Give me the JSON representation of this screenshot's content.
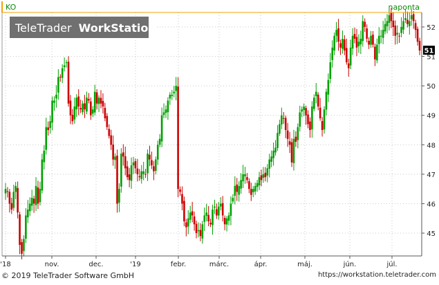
{
  "symbol": "KO",
  "period": "naponta",
  "watermark": {
    "prefix": "TeleTrader",
    "suffix": "WorkStation"
  },
  "footer": {
    "copyright": "© 2019 TeleTrader Software GmbH",
    "url": "https://workstation.teletrader.com"
  },
  "colors": {
    "up": "#00a000",
    "down": "#cc0000",
    "accent": "#f5a000",
    "grid": "#c8c8c8"
  },
  "last_price_label": "51",
  "chart_data": {
    "type": "candlestick",
    "title": "KO",
    "x_tick_labels": [
      "'18",
      "nov.",
      "dec.",
      "'19",
      "febr.",
      "márc.",
      "ápr.",
      "máj.",
      "jún.",
      "júl."
    ],
    "y_ticks": [
      45,
      46,
      47,
      48,
      49,
      50,
      51,
      52
    ],
    "ylim": [
      44.6,
      52.45
    ],
    "last_price": 51.2,
    "grid": true,
    "closes": [
      46.5,
      46.4,
      46.0,
      45.8,
      46.4,
      46.6,
      45.7,
      44.6,
      44.3,
      44.8,
      45.6,
      45.8,
      46.0,
      46.2,
      46.0,
      46.6,
      46.0,
      46.5,
      47.5,
      47.8,
      48.6,
      48.5,
      48.8,
      49.5,
      49.5,
      49.7,
      50.3,
      50.3,
      50.6,
      50.7,
      50.8,
      49.4,
      49.0,
      48.8,
      49.3,
      49.6,
      49.3,
      49.2,
      49.4,
      49.2,
      49.6,
      49.5,
      49.0,
      49.2,
      49.8,
      49.4,
      49.6,
      49.4,
      49.3,
      48.9,
      48.6,
      48.3,
      48.0,
      47.5,
      47.6,
      46.0,
      46.5,
      47.7,
      47.6,
      47.2,
      46.9,
      46.8,
      47.3,
      47.4,
      47.2,
      47.0,
      46.9,
      47.1,
      47.1,
      47.0,
      47.7,
      47.5,
      47.3,
      47.1,
      47.5,
      48.0,
      48.2,
      49.0,
      49.1,
      49.2,
      49.5,
      49.7,
      49.7,
      49.8,
      50.0,
      46.5,
      46.4,
      46.0,
      45.4,
      45.2,
      45.5,
      45.7,
      45.6,
      45.3,
      45.0,
      45.1,
      44.9,
      45.3,
      45.6,
      45.7,
      45.4,
      45.3,
      45.8,
      45.9,
      45.6,
      45.9,
      46.0,
      45.6,
      45.3,
      45.5,
      45.6,
      46.0,
      46.2,
      46.6,
      46.4,
      46.6,
      46.8,
      47.0,
      47.0,
      46.8,
      46.5,
      46.3,
      46.5,
      46.6,
      46.7,
      46.9,
      46.8,
      47.0,
      46.9,
      47.2,
      47.5,
      47.6,
      47.8,
      47.9,
      48.4,
      48.7,
      49.0,
      48.9,
      48.5,
      48.2,
      48.0,
      47.4,
      48.2,
      48.1,
      48.6,
      49.1,
      49.2,
      49.3,
      49.0,
      48.7,
      48.5,
      49.3,
      49.6,
      49.8,
      49.3,
      48.9,
      48.5,
      49.2,
      49.8,
      50.2,
      50.8,
      51.3,
      51.7,
      51.9,
      51.5,
      51.3,
      51.6,
      51.2,
      50.8,
      50.6,
      51.3,
      51.7,
      51.6,
      51.3,
      51.5,
      51.6,
      52.2,
      52.0,
      51.6,
      51.4,
      51.7,
      51.4,
      50.9,
      51.4,
      51.7,
      51.7,
      51.9,
      52.1,
      52.2,
      52.4,
      52.2,
      52.0,
      51.7,
      51.8,
      51.7,
      52.0,
      52.2,
      52.3,
      52.1,
      52.2,
      52.4,
      52.2,
      51.9,
      51.5,
      51.2
    ]
  }
}
